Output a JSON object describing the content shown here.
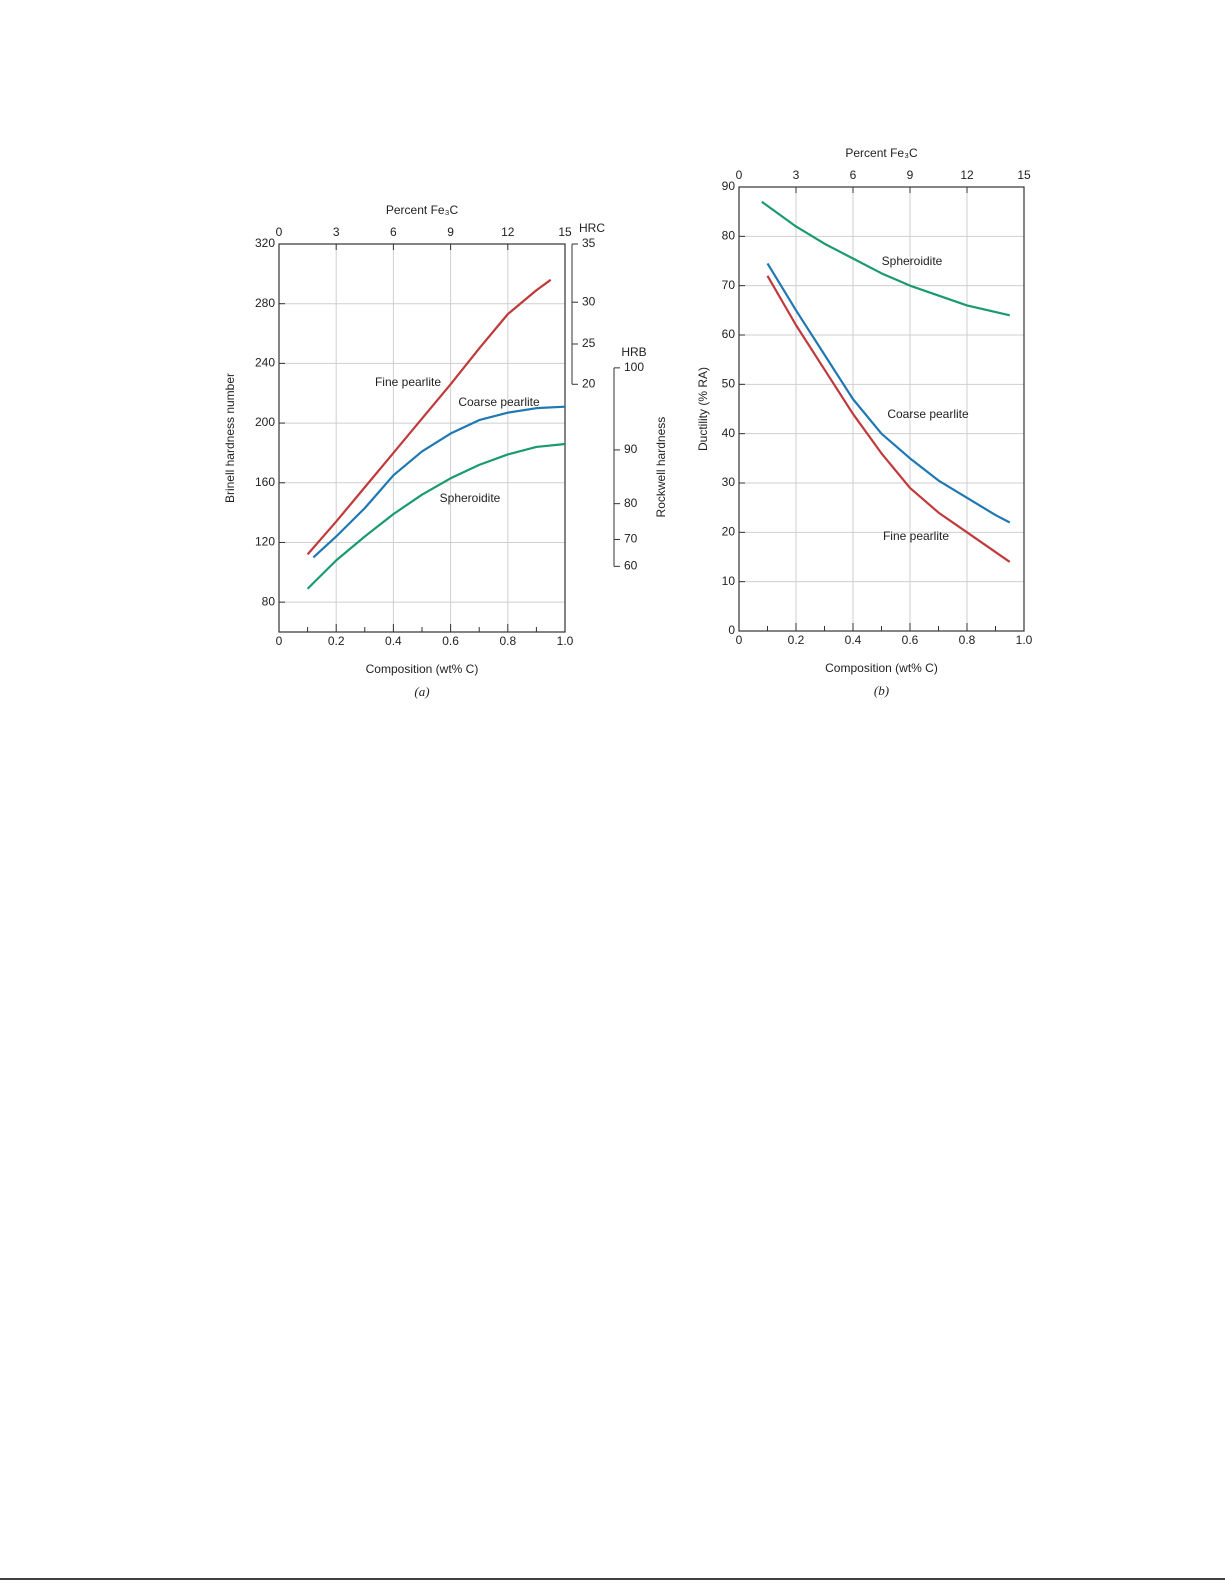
{
  "chart_data": [
    {
      "type": "line",
      "x_label": "Composition (wt% C)",
      "y_label": "Brinell hardness number",
      "x2_label": "Percent Fe₃C",
      "caption": "(a)",
      "xlim": [
        0,
        1
      ],
      "xticks": [
        0,
        0.2,
        0.4,
        0.6,
        0.8,
        {
          "value": 1,
          "label": "1.0"
        }
      ],
      "xminorticks": [
        0.1,
        0.3,
        0.5,
        0.7,
        0.9
      ],
      "x2lim": [
        0,
        15
      ],
      "x2ticks": [
        0,
        3,
        6,
        9,
        12,
        15
      ],
      "ylim": [
        60,
        320
      ],
      "yticks": [
        80,
        120,
        160,
        200,
        240,
        280,
        320
      ],
      "grid": true,
      "hrc_scale": {
        "label": "HRC",
        "ticks": [
          35,
          30,
          25,
          20
        ],
        "brinell": [
          320,
          281,
          253,
          226
        ]
      },
      "hrb_scale": {
        "label": "HRB",
        "title": "Rockwell hardness",
        "ticks": [
          100,
          90,
          80,
          70,
          60
        ],
        "brinell": [
          237,
          182,
          146,
          122,
          104
        ]
      },
      "series": [
        {
          "name": "Fine pearlite",
          "color": "#c0393b",
          "x": [
            0.1,
            0.2,
            0.3,
            0.4,
            0.5,
            0.6,
            0.7,
            0.8,
            0.9,
            0.95
          ],
          "values": [
            112,
            134,
            157,
            180,
            203,
            226,
            250,
            273,
            289,
            296
          ]
        },
        {
          "name": "Coarse pearlite",
          "color": "#1f78b4",
          "x": [
            0.12,
            0.2,
            0.3,
            0.4,
            0.5,
            0.6,
            0.7,
            0.8,
            0.9,
            1
          ],
          "values": [
            110,
            124,
            143,
            165,
            181,
            193,
            202,
            207,
            210,
            211
          ]
        },
        {
          "name": "Spheroidite",
          "color": "#1a9a70",
          "x": [
            0.1,
            0.2,
            0.3,
            0.4,
            0.5,
            0.6,
            0.7,
            0.8,
            0.9,
            1
          ],
          "values": [
            89,
            108,
            124,
            139,
            152,
            163,
            172,
            179,
            184,
            186
          ]
        }
      ]
    },
    {
      "type": "line",
      "x_label": "Composition (wt% C)",
      "y_label": "Ductility (% RA)",
      "x2_label": "Percent Fe₃C",
      "caption": "(b)",
      "xlim": [
        0,
        1
      ],
      "xticks": [
        0,
        0.2,
        0.4,
        0.6,
        0.8,
        {
          "value": 1,
          "label": "1.0"
        }
      ],
      "xminorticks": [
        0.1,
        0.3,
        0.5,
        0.7,
        0.9
      ],
      "x2lim": [
        0,
        15
      ],
      "x2ticks": [
        0,
        3,
        6,
        9,
        12,
        15
      ],
      "ylim": [
        0,
        90
      ],
      "yticks": [
        0,
        10,
        20,
        30,
        40,
        50,
        60,
        70,
        80,
        90
      ],
      "grid": true,
      "series": [
        {
          "name": "Spheroidite",
          "color": "#1a9a70",
          "x": [
            0.08,
            0.2,
            0.3,
            0.4,
            0.5,
            0.6,
            0.7,
            0.8,
            0.95
          ],
          "values": [
            87,
            82,
            78.5,
            75.5,
            72.5,
            70,
            68,
            66,
            64
          ]
        },
        {
          "name": "Coarse pearlite",
          "color": "#1f78b4",
          "x": [
            0.1,
            0.2,
            0.3,
            0.4,
            0.5,
            0.6,
            0.7,
            0.8,
            0.9,
            0.95
          ],
          "values": [
            74.5,
            65,
            56,
            47,
            40,
            35,
            30.5,
            27,
            23.5,
            22
          ]
        },
        {
          "name": "Fine pearlite",
          "color": "#c0393b",
          "x": [
            0.1,
            0.2,
            0.3,
            0.4,
            0.5,
            0.6,
            0.7,
            0.8,
            0.9,
            0.95
          ],
          "values": [
            72,
            62,
            53,
            44,
            36,
            29,
            24,
            20,
            16,
            14
          ]
        }
      ]
    }
  ]
}
